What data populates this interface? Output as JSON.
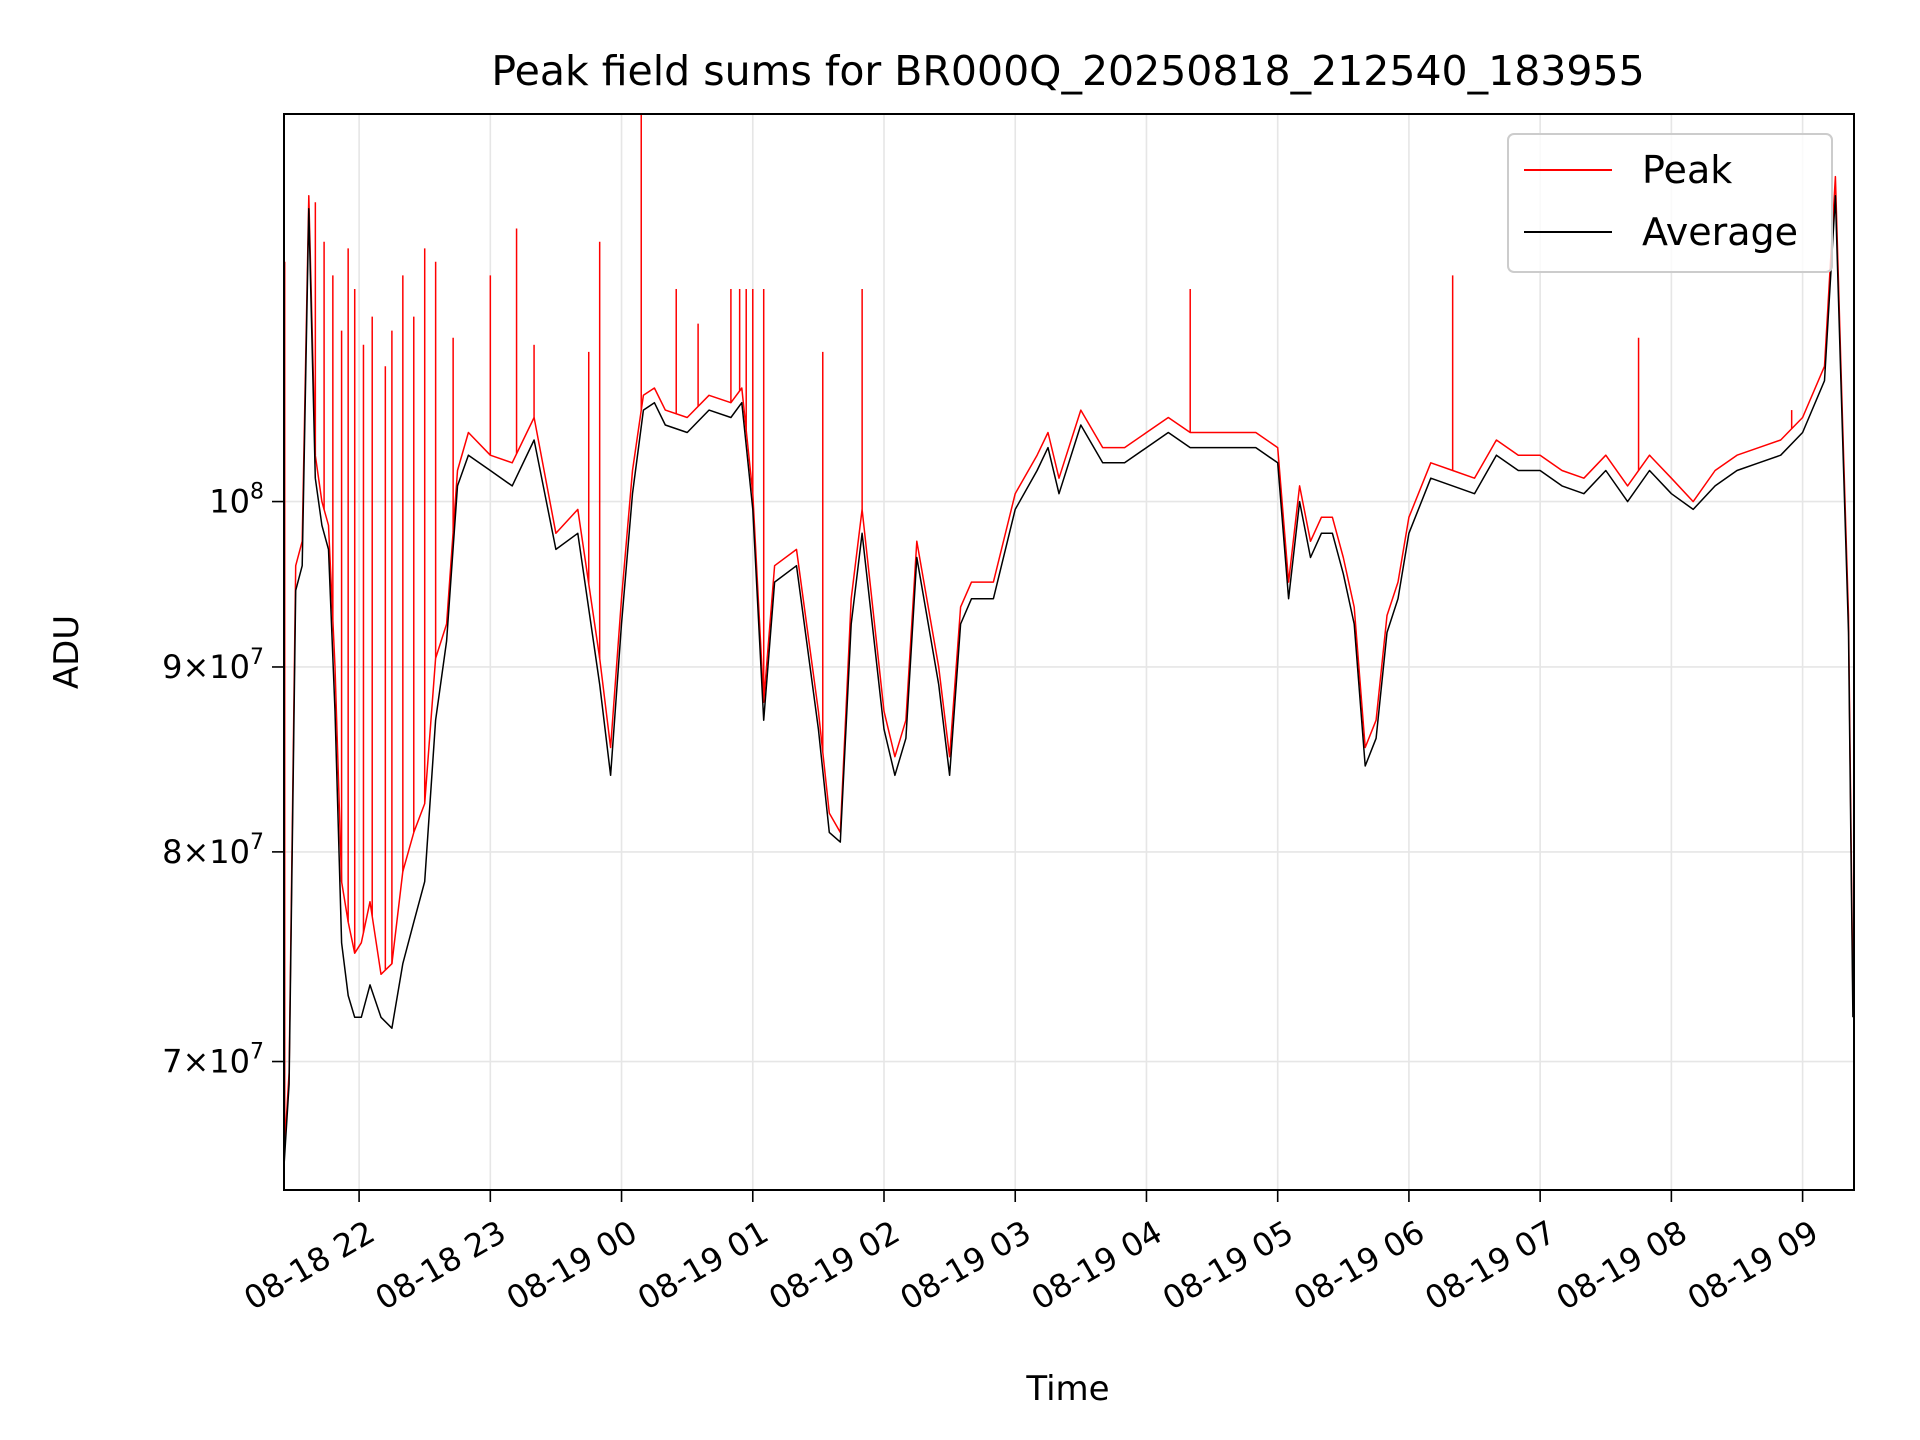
{
  "chart_data": {
    "type": "line",
    "title": "Peak field sums for BR000Q_20250818_212540_183955",
    "xlabel": "Time",
    "ylabel": "ADU",
    "y_scale": "log",
    "ylim": [
      64500000,
      128000000
    ],
    "xlim": [
      "2025-08-18 21:25:40",
      "2025-08-19 09:23:30"
    ],
    "x_ticks": [
      {
        "t": "2025-08-18 22:00",
        "label": "08-18 22"
      },
      {
        "t": "2025-08-18 23:00",
        "label": "08-18 23"
      },
      {
        "t": "2025-08-19 00:00",
        "label": "08-19 00"
      },
      {
        "t": "2025-08-19 01:00",
        "label": "08-19 01"
      },
      {
        "t": "2025-08-19 02:00",
        "label": "08-19 02"
      },
      {
        "t": "2025-08-19 03:00",
        "label": "08-19 03"
      },
      {
        "t": "2025-08-19 04:00",
        "label": "08-19 04"
      },
      {
        "t": "2025-08-19 05:00",
        "label": "08-19 05"
      },
      {
        "t": "2025-08-19 06:00",
        "label": "08-19 06"
      },
      {
        "t": "2025-08-19 07:00",
        "label": "08-19 07"
      },
      {
        "t": "2025-08-19 08:00",
        "label": "08-19 08"
      },
      {
        "t": "2025-08-19 09:00",
        "label": "08-19 09"
      }
    ],
    "y_ticks": [
      {
        "value": 70000000,
        "mantissa": "7",
        "exp": "7"
      },
      {
        "value": 80000000,
        "mantissa": "8",
        "exp": "7"
      },
      {
        "value": 90000000,
        "mantissa": "9",
        "exp": "7"
      },
      {
        "value": 100000000,
        "mantissa": "",
        "exp": "8"
      }
    ],
    "grid": true,
    "legend_position": "upper right",
    "series": [
      {
        "name": "Peak",
        "color": "#ff0000",
        "x": [
          "2025-08-18 21:25",
          "2025-08-18 21:28",
          "2025-08-18 21:31",
          "2025-08-18 21:34",
          "2025-08-18 21:37",
          "2025-08-18 21:40",
          "2025-08-18 21:43",
          "2025-08-18 21:46",
          "2025-08-18 21:49",
          "2025-08-18 21:52",
          "2025-08-18 21:55",
          "2025-08-18 21:58",
          "2025-08-18 22:01",
          "2025-08-18 22:05",
          "2025-08-18 22:10",
          "2025-08-18 22:15",
          "2025-08-18 22:20",
          "2025-08-18 22:25",
          "2025-08-18 22:30",
          "2025-08-18 22:35",
          "2025-08-18 22:40",
          "2025-08-18 22:45",
          "2025-08-18 22:50",
          "2025-08-18 23:00",
          "2025-08-18 23:10",
          "2025-08-18 23:20",
          "2025-08-18 23:30",
          "2025-08-18 23:40",
          "2025-08-18 23:50",
          "2025-08-18 23:55",
          "2025-08-19 00:00",
          "2025-08-19 00:05",
          "2025-08-19 00:10",
          "2025-08-19 00:15",
          "2025-08-19 00:20",
          "2025-08-19 00:30",
          "2025-08-19 00:40",
          "2025-08-19 00:50",
          "2025-08-19 00:55",
          "2025-08-19 01:00",
          "2025-08-19 01:05",
          "2025-08-19 01:10",
          "2025-08-19 01:20",
          "2025-08-19 01:30",
          "2025-08-19 01:35",
          "2025-08-19 01:40",
          "2025-08-19 01:45",
          "2025-08-19 01:50",
          "2025-08-19 02:00",
          "2025-08-19 02:05",
          "2025-08-19 02:10",
          "2025-08-19 02:15",
          "2025-08-19 02:25",
          "2025-08-19 02:30",
          "2025-08-19 02:35",
          "2025-08-19 02:40",
          "2025-08-19 02:50",
          "2025-08-19 03:00",
          "2025-08-19 03:10",
          "2025-08-19 03:15",
          "2025-08-19 03:20",
          "2025-08-19 03:30",
          "2025-08-19 03:40",
          "2025-08-19 03:50",
          "2025-08-19 04:00",
          "2025-08-19 04:10",
          "2025-08-19 04:20",
          "2025-08-19 04:30",
          "2025-08-19 04:40",
          "2025-08-19 04:50",
          "2025-08-19 05:00",
          "2025-08-19 05:05",
          "2025-08-19 05:10",
          "2025-08-19 05:15",
          "2025-08-19 05:20",
          "2025-08-19 05:25",
          "2025-08-19 05:30",
          "2025-08-19 05:35",
          "2025-08-19 05:40",
          "2025-08-19 05:45",
          "2025-08-19 05:50",
          "2025-08-19 05:55",
          "2025-08-19 06:00",
          "2025-08-19 06:10",
          "2025-08-19 06:20",
          "2025-08-19 06:30",
          "2025-08-19 06:40",
          "2025-08-19 06:50",
          "2025-08-19 07:00",
          "2025-08-19 07:10",
          "2025-08-19 07:20",
          "2025-08-19 07:30",
          "2025-08-19 07:40",
          "2025-08-19 07:50",
          "2025-08-19 08:00",
          "2025-08-19 08:10",
          "2025-08-19 08:20",
          "2025-08-19 08:30",
          "2025-08-19 08:40",
          "2025-08-19 08:50",
          "2025-08-19 09:00",
          "2025-08-19 09:10",
          "2025-08-19 09:15",
          "2025-08-19 09:18",
          "2025-08-19 09:21",
          "2025-08-19 09:23"
        ],
        "y": [
          64800000,
          69500000,
          96000000,
          97500000,
          121500000,
          103000000,
          100000000,
          98500000,
          90000000,
          78500000,
          76500000,
          75000000,
          75500000,
          77500000,
          74000000,
          74500000,
          79000000,
          81000000,
          82500000,
          90500000,
          92500000,
          102000000,
          104500000,
          103000000,
          102500000,
          105500000,
          98000000,
          99500000,
          90500000,
          85500000,
          94000000,
          102000000,
          107000000,
          107500000,
          106000000,
          105500000,
          107000000,
          106500000,
          107500000,
          100500000,
          88000000,
          96000000,
          97000000,
          87500000,
          82000000,
          81000000,
          94000000,
          99500000,
          87500000,
          85000000,
          87000000,
          97500000,
          90000000,
          85000000,
          93500000,
          95000000,
          95000000,
          100500000,
          103000000,
          104500000,
          101500000,
          106000000,
          103500000,
          103500000,
          104500000,
          105500000,
          104500000,
          104500000,
          104500000,
          104500000,
          103500000,
          95000000,
          101000000,
          97500000,
          99000000,
          99000000,
          96500000,
          93500000,
          85500000,
          87000000,
          93000000,
          95000000,
          99000000,
          102500000,
          102000000,
          101500000,
          104000000,
          103000000,
          103000000,
          102000000,
          101500000,
          103000000,
          101000000,
          103000000,
          101500000,
          100000000,
          102000000,
          103000000,
          103500000,
          104000000,
          105500000,
          109000000,
          123000000,
          106500000,
          93000000,
          73000000
        ],
        "spikes": [
          {
            "x": "2025-08-18 21:26",
            "y": 116500000
          },
          {
            "x": "2025-08-18 21:40",
            "y": 121000000
          },
          {
            "x": "2025-08-18 21:44",
            "y": 118000000
          },
          {
            "x": "2025-08-18 21:48",
            "y": 115500000
          },
          {
            "x": "2025-08-18 21:52",
            "y": 111500000
          },
          {
            "x": "2025-08-18 21:55",
            "y": 117500000
          },
          {
            "x": "2025-08-18 21:58",
            "y": 114500000
          },
          {
            "x": "2025-08-18 22:02",
            "y": 110500000
          },
          {
            "x": "2025-08-18 22:06",
            "y": 112500000
          },
          {
            "x": "2025-08-18 22:12",
            "y": 109000000
          },
          {
            "x": "2025-08-18 22:15",
            "y": 111500000
          },
          {
            "x": "2025-08-18 22:20",
            "y": 115500000
          },
          {
            "x": "2025-08-18 22:25",
            "y": 112500000
          },
          {
            "x": "2025-08-18 22:30",
            "y": 117500000
          },
          {
            "x": "2025-08-18 22:35",
            "y": 116500000
          },
          {
            "x": "2025-08-18 22:43",
            "y": 111000000
          },
          {
            "x": "2025-08-18 23:00",
            "y": 115500000
          },
          {
            "x": "2025-08-18 23:12",
            "y": 119000000
          },
          {
            "x": "2025-08-18 23:20",
            "y": 110500000
          },
          {
            "x": "2025-08-18 23:45",
            "y": 110000000
          },
          {
            "x": "2025-08-18 23:50",
            "y": 118000000
          },
          {
            "x": "2025-08-19 00:09",
            "y": 128000000
          },
          {
            "x": "2025-08-19 00:25",
            "y": 114500000
          },
          {
            "x": "2025-08-19 00:35",
            "y": 112000000
          },
          {
            "x": "2025-08-19 00:50",
            "y": 114500000
          },
          {
            "x": "2025-08-19 00:54",
            "y": 114500000
          },
          {
            "x": "2025-08-19 00:57",
            "y": 114500000
          },
          {
            "x": "2025-08-19 01:00",
            "y": 114500000
          },
          {
            "x": "2025-08-19 01:05",
            "y": 114500000
          },
          {
            "x": "2025-08-19 01:32",
            "y": 110000000
          },
          {
            "x": "2025-08-19 01:50",
            "y": 114500000
          },
          {
            "x": "2025-08-19 04:20",
            "y": 114500000
          },
          {
            "x": "2025-08-19 06:20",
            "y": 115500000
          },
          {
            "x": "2025-08-19 07:45",
            "y": 111000000
          },
          {
            "x": "2025-08-19 08:55",
            "y": 106000000
          }
        ]
      },
      {
        "name": "Average",
        "color": "#000000",
        "x": [
          "2025-08-18 21:25",
          "2025-08-18 21:28",
          "2025-08-18 21:31",
          "2025-08-18 21:34",
          "2025-08-18 21:37",
          "2025-08-18 21:40",
          "2025-08-18 21:43",
          "2025-08-18 21:46",
          "2025-08-18 21:49",
          "2025-08-18 21:52",
          "2025-08-18 21:55",
          "2025-08-18 21:58",
          "2025-08-18 22:01",
          "2025-08-18 22:05",
          "2025-08-18 22:10",
          "2025-08-18 22:15",
          "2025-08-18 22:20",
          "2025-08-18 22:25",
          "2025-08-18 22:30",
          "2025-08-18 22:35",
          "2025-08-18 22:40",
          "2025-08-18 22:45",
          "2025-08-18 22:50",
          "2025-08-18 23:00",
          "2025-08-18 23:10",
          "2025-08-18 23:20",
          "2025-08-18 23:30",
          "2025-08-18 23:40",
          "2025-08-18 23:50",
          "2025-08-18 23:55",
          "2025-08-19 00:00",
          "2025-08-19 00:05",
          "2025-08-19 00:10",
          "2025-08-19 00:15",
          "2025-08-19 00:20",
          "2025-08-19 00:30",
          "2025-08-19 00:40",
          "2025-08-19 00:50",
          "2025-08-19 00:55",
          "2025-08-19 01:00",
          "2025-08-19 01:05",
          "2025-08-19 01:10",
          "2025-08-19 01:20",
          "2025-08-19 01:30",
          "2025-08-19 01:35",
          "2025-08-19 01:40",
          "2025-08-19 01:45",
          "2025-08-19 01:50",
          "2025-08-19 02:00",
          "2025-08-19 02:05",
          "2025-08-19 02:10",
          "2025-08-19 02:15",
          "2025-08-19 02:25",
          "2025-08-19 02:30",
          "2025-08-19 02:35",
          "2025-08-19 02:40",
          "2025-08-19 02:50",
          "2025-08-19 03:00",
          "2025-08-19 03:10",
          "2025-08-19 03:15",
          "2025-08-19 03:20",
          "2025-08-19 03:30",
          "2025-08-19 03:40",
          "2025-08-19 03:50",
          "2025-08-19 04:00",
          "2025-08-19 04:10",
          "2025-08-19 04:20",
          "2025-08-19 04:30",
          "2025-08-19 04:40",
          "2025-08-19 04:50",
          "2025-08-19 05:00",
          "2025-08-19 05:05",
          "2025-08-19 05:10",
          "2025-08-19 05:15",
          "2025-08-19 05:20",
          "2025-08-19 05:25",
          "2025-08-19 05:30",
          "2025-08-19 05:35",
          "2025-08-19 05:40",
          "2025-08-19 05:45",
          "2025-08-19 05:50",
          "2025-08-19 05:55",
          "2025-08-19 06:00",
          "2025-08-19 06:10",
          "2025-08-19 06:20",
          "2025-08-19 06:30",
          "2025-08-19 06:40",
          "2025-08-19 06:50",
          "2025-08-19 07:00",
          "2025-08-19 07:10",
          "2025-08-19 07:20",
          "2025-08-19 07:30",
          "2025-08-19 07:40",
          "2025-08-19 07:50",
          "2025-08-19 08:00",
          "2025-08-19 08:10",
          "2025-08-19 08:20",
          "2025-08-19 08:30",
          "2025-08-19 08:40",
          "2025-08-19 08:50",
          "2025-08-19 09:00",
          "2025-08-19 09:10",
          "2025-08-19 09:15",
          "2025-08-19 09:18",
          "2025-08-19 09:21",
          "2025-08-19 09:23"
        ],
        "y": [
          64500000,
          69000000,
          94500000,
          96000000,
          120500000,
          101500000,
          98500000,
          97000000,
          87500000,
          75500000,
          73000000,
          72000000,
          72000000,
          73500000,
          72000000,
          71500000,
          74500000,
          76500000,
          78500000,
          87000000,
          91500000,
          101000000,
          103000000,
          102000000,
          101000000,
          104000000,
          97000000,
          98000000,
          89000000,
          84000000,
          92500000,
          100500000,
          106000000,
          106500000,
          105000000,
          104500000,
          106000000,
          105500000,
          106500000,
          99500000,
          87000000,
          95000000,
          96000000,
          86500000,
          81000000,
          80500000,
          92500000,
          98000000,
          86500000,
          84000000,
          86000000,
          96500000,
          89000000,
          84000000,
          92500000,
          94000000,
          94000000,
          99500000,
          102000000,
          103500000,
          100500000,
          105000000,
          102500000,
          102500000,
          103500000,
          104500000,
          103500000,
          103500000,
          103500000,
          103500000,
          102500000,
          94000000,
          100000000,
          96500000,
          98000000,
          98000000,
          95500000,
          92500000,
          84500000,
          86000000,
          92000000,
          94000000,
          98000000,
          101500000,
          101000000,
          100500000,
          103000000,
          102000000,
          102000000,
          101000000,
          100500000,
          102000000,
          100000000,
          102000000,
          100500000,
          99500000,
          101000000,
          102000000,
          102500000,
          103000000,
          104500000,
          108000000,
          121500000,
          105500000,
          92000000,
          72000000
        ]
      }
    ]
  }
}
